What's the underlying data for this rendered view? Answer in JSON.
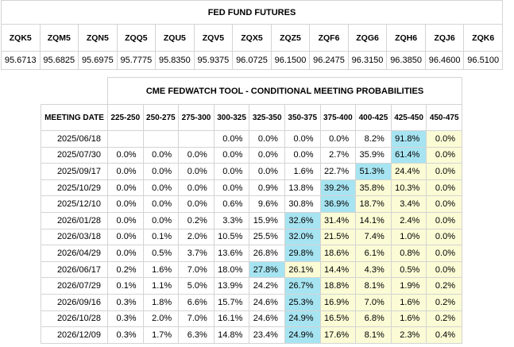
{
  "futures": {
    "title": "FED FUND FUTURES",
    "symbols": [
      "ZQK5",
      "ZQM5",
      "ZQN5",
      "ZQQ5",
      "ZQU5",
      "ZQV5",
      "ZQX5",
      "ZQZ5",
      "ZQF6",
      "ZQG6",
      "ZQH6",
      "ZQJ6",
      "ZQK6"
    ],
    "prices": [
      "95.6713",
      "95.6825",
      "95.6975",
      "95.7775",
      "95.8350",
      "95.9375",
      "96.0725",
      "96.1500",
      "96.2475",
      "96.3150",
      "96.3850",
      "96.4600",
      "96.5100"
    ]
  },
  "fedwatch": {
    "title": "CME FEDWATCH TOOL - CONDITIONAL MEETING PROBABILITIES",
    "date_header": "MEETING DATE",
    "ranges": [
      "225-250",
      "250-275",
      "275-300",
      "300-325",
      "325-350",
      "350-375",
      "375-400",
      "400-425",
      "425-450",
      "450-475"
    ],
    "colors": {
      "highlight": "#a7e4f2",
      "shade": "#fbfbd5"
    },
    "rows": [
      {
        "date": "2025/06/18",
        "values": [
          "",
          "",
          "",
          "0.0%",
          "0.0%",
          "0.0%",
          "0.0%",
          "8.2%",
          "91.8%",
          "0.0%"
        ],
        "max": 8
      },
      {
        "date": "2025/07/30",
        "values": [
          "0.0%",
          "0.0%",
          "0.0%",
          "0.0%",
          "0.0%",
          "0.0%",
          "2.7%",
          "35.9%",
          "61.4%",
          "0.0%"
        ],
        "max": 8
      },
      {
        "date": "2025/09/17",
        "values": [
          "0.0%",
          "0.0%",
          "0.0%",
          "0.0%",
          "0.0%",
          "1.6%",
          "22.7%",
          "51.3%",
          "24.4%",
          "0.0%"
        ],
        "max": 7
      },
      {
        "date": "2025/10/29",
        "values": [
          "0.0%",
          "0.0%",
          "0.0%",
          "0.0%",
          "0.9%",
          "13.8%",
          "39.2%",
          "35.8%",
          "10.3%",
          "0.0%"
        ],
        "max": 6
      },
      {
        "date": "2025/12/10",
        "values": [
          "0.0%",
          "0.0%",
          "0.0%",
          "0.6%",
          "9.6%",
          "30.8%",
          "36.9%",
          "18.7%",
          "3.4%",
          "0.0%"
        ],
        "max": 6
      },
      {
        "date": "2026/01/28",
        "values": [
          "0.0%",
          "0.0%",
          "0.2%",
          "3.3%",
          "15.9%",
          "32.6%",
          "31.4%",
          "14.1%",
          "2.4%",
          "0.0%"
        ],
        "max": 5
      },
      {
        "date": "2026/03/18",
        "values": [
          "0.0%",
          "0.1%",
          "2.0%",
          "10.5%",
          "25.5%",
          "32.0%",
          "21.5%",
          "7.4%",
          "1.0%",
          "0.0%"
        ],
        "max": 5
      },
      {
        "date": "2026/04/29",
        "values": [
          "0.0%",
          "0.5%",
          "3.7%",
          "13.6%",
          "26.8%",
          "29.8%",
          "18.6%",
          "6.1%",
          "0.8%",
          "0.0%"
        ],
        "max": 5
      },
      {
        "date": "2026/06/17",
        "values": [
          "0.2%",
          "1.6%",
          "7.0%",
          "18.0%",
          "27.8%",
          "26.1%",
          "14.4%",
          "4.3%",
          "0.5%",
          "0.0%"
        ],
        "max": 4
      },
      {
        "date": "2026/07/29",
        "values": [
          "0.1%",
          "1.1%",
          "5.0%",
          "13.9%",
          "24.2%",
          "26.7%",
          "18.8%",
          "8.1%",
          "1.9%",
          "0.2%"
        ],
        "max": 5
      },
      {
        "date": "2026/09/16",
        "values": [
          "0.3%",
          "1.8%",
          "6.6%",
          "15.7%",
          "24.6%",
          "25.3%",
          "16.9%",
          "7.0%",
          "1.6%",
          "0.2%"
        ],
        "max": 5
      },
      {
        "date": "2026/10/28",
        "values": [
          "0.3%",
          "2.0%",
          "7.0%",
          "16.1%",
          "24.6%",
          "24.9%",
          "16.5%",
          "6.8%",
          "1.6%",
          "0.2%"
        ],
        "max": 5
      },
      {
        "date": "2026/12/09",
        "values": [
          "0.3%",
          "1.7%",
          "6.3%",
          "14.8%",
          "23.4%",
          "24.9%",
          "17.6%",
          "8.1%",
          "2.3%",
          "0.4%"
        ],
        "max": 5
      }
    ]
  }
}
